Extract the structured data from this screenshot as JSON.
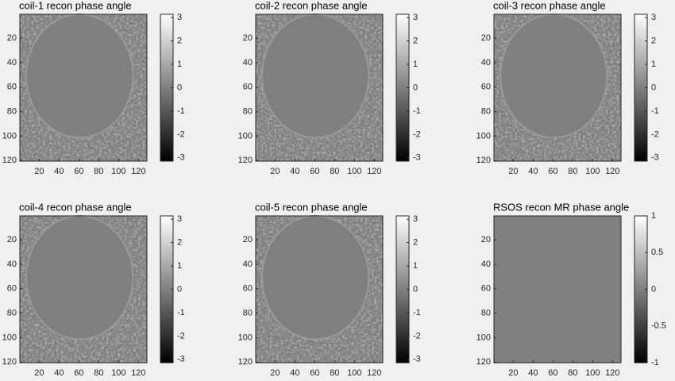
{
  "chart_data": [
    {
      "type": "image",
      "title": "coil-1 recon phase angle",
      "colormap": "gray",
      "y_reversed": true,
      "xlim": [
        0.5,
        128.5
      ],
      "ylim": [
        0.5,
        120.5
      ],
      "xticks": [
        20,
        40,
        60,
        80,
        100,
        120
      ],
      "yticks": [
        20,
        40,
        60,
        80,
        100,
        120
      ],
      "clim": [
        -3.1416,
        3.1416
      ],
      "cticks": [
        -3,
        -2,
        -1,
        0,
        1,
        2,
        3
      ]
    },
    {
      "type": "image",
      "title": "coil-2 recon phase angle",
      "colormap": "gray",
      "y_reversed": true,
      "xlim": [
        0.5,
        128.5
      ],
      "ylim": [
        0.5,
        120.5
      ],
      "xticks": [
        20,
        40,
        60,
        80,
        100,
        120
      ],
      "yticks": [
        20,
        40,
        60,
        80,
        100,
        120
      ],
      "clim": [
        -3.1416,
        3.1416
      ],
      "cticks": [
        -3,
        -2,
        -1,
        0,
        1,
        2,
        3
      ]
    },
    {
      "type": "image",
      "title": "coil-3 recon phase angle",
      "colormap": "gray",
      "y_reversed": true,
      "xlim": [
        0.5,
        128.5
      ],
      "ylim": [
        0.5,
        120.5
      ],
      "xticks": [
        20,
        40,
        60,
        80,
        100,
        120
      ],
      "yticks": [
        20,
        40,
        60,
        80,
        100,
        120
      ],
      "clim": [
        -3.1416,
        3.1416
      ],
      "cticks": [
        -3,
        -2,
        -1,
        0,
        1,
        2,
        3
      ]
    },
    {
      "type": "image",
      "title": "coil-4 recon phase angle",
      "colormap": "gray",
      "y_reversed": true,
      "xlim": [
        0.5,
        128.5
      ],
      "ylim": [
        0.5,
        120.5
      ],
      "xticks": [
        20,
        40,
        60,
        80,
        100,
        120
      ],
      "yticks": [
        20,
        40,
        60,
        80,
        100,
        120
      ],
      "clim": [
        -3.1416,
        3.1416
      ],
      "cticks": [
        -3,
        -2,
        -1,
        0,
        1,
        2,
        3
      ]
    },
    {
      "type": "image",
      "title": "coil-5 recon phase angle",
      "colormap": "gray",
      "y_reversed": true,
      "xlim": [
        0.5,
        128.5
      ],
      "ylim": [
        0.5,
        120.5
      ],
      "xticks": [
        20,
        40,
        60,
        80,
        100,
        120
      ],
      "yticks": [
        20,
        40,
        60,
        80,
        100,
        120
      ],
      "clim": [
        -3.1416,
        3.1416
      ],
      "cticks": [
        -3,
        -2,
        -1,
        0,
        1,
        2,
        3
      ]
    },
    {
      "type": "image",
      "title": "RSOS recon MR phase angle",
      "colormap": "gray",
      "y_reversed": true,
      "xlim": [
        0.5,
        128.5
      ],
      "ylim": [
        0.5,
        120.5
      ],
      "xticks": [
        20,
        40,
        60,
        80,
        100,
        120
      ],
      "yticks": [
        20,
        40,
        60,
        80,
        100,
        120
      ],
      "clim": [
        -1,
        1
      ],
      "cticks": [
        -1,
        -0.5,
        0,
        0.5,
        1
      ]
    }
  ]
}
